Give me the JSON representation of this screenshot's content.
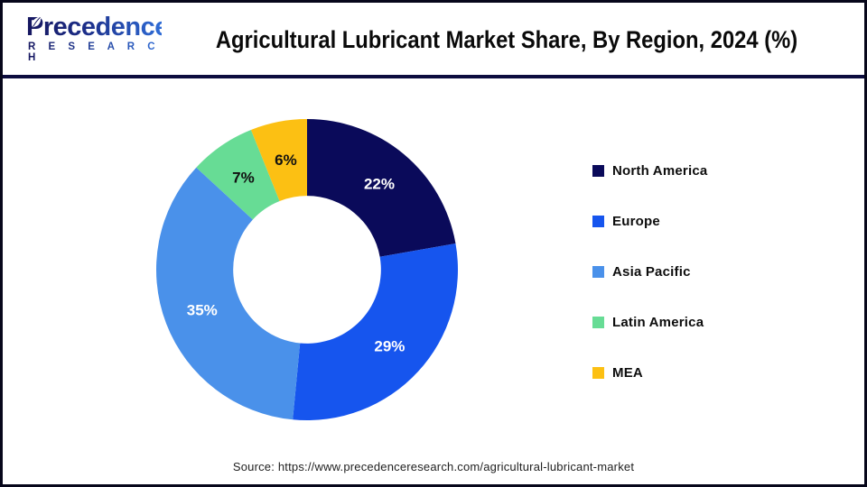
{
  "header": {
    "logo": {
      "brand": "Precedence",
      "subtitle": "R E S E A R C H"
    },
    "title": "Agricultural Lubricant Market Share, By Region, 2024 (%)"
  },
  "chart_data": {
    "type": "pie",
    "subtype": "donut",
    "title": "Agricultural Lubricant Market Share, By Region, 2024 (%)",
    "categories": [
      "North America",
      "Europe",
      "Asia Pacific",
      "Latin America",
      "MEA"
    ],
    "values": [
      22,
      29,
      35,
      7,
      6
    ],
    "unit": "%",
    "colors": [
      "#0a0a5a",
      "#1655ee",
      "#4a91ea",
      "#67dc95",
      "#fcc013"
    ],
    "label_colors": [
      "#ffffff",
      "#ffffff",
      "#ffffff",
      "#111111",
      "#111111"
    ],
    "start_angle_deg": 0,
    "direction": "clockwise",
    "inner_radius_ratio": 0.49,
    "legend_position": "right",
    "legend_marker": "square"
  },
  "footer": {
    "source": "Source: https://www.precedenceresearch.com/agricultural-lubricant-market"
  }
}
